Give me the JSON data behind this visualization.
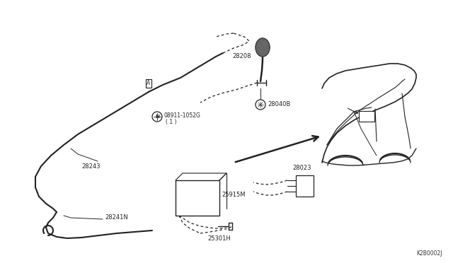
{
  "bg_color": "#ffffff",
  "line_color": "#222222",
  "fig_width": 6.4,
  "fig_height": 3.72,
  "dpi": 100,
  "watermark": "K2B0002J",
  "label_28208": "28208",
  "label_28040B": "28040B",
  "label_28243": "28243",
  "label_28241N": "28241N",
  "label_25915M": "25915M",
  "label_25301H": "25301H",
  "label_28023": "28023",
  "label_nut": "08911-1052G",
  "label_nut2": "( 1 )"
}
